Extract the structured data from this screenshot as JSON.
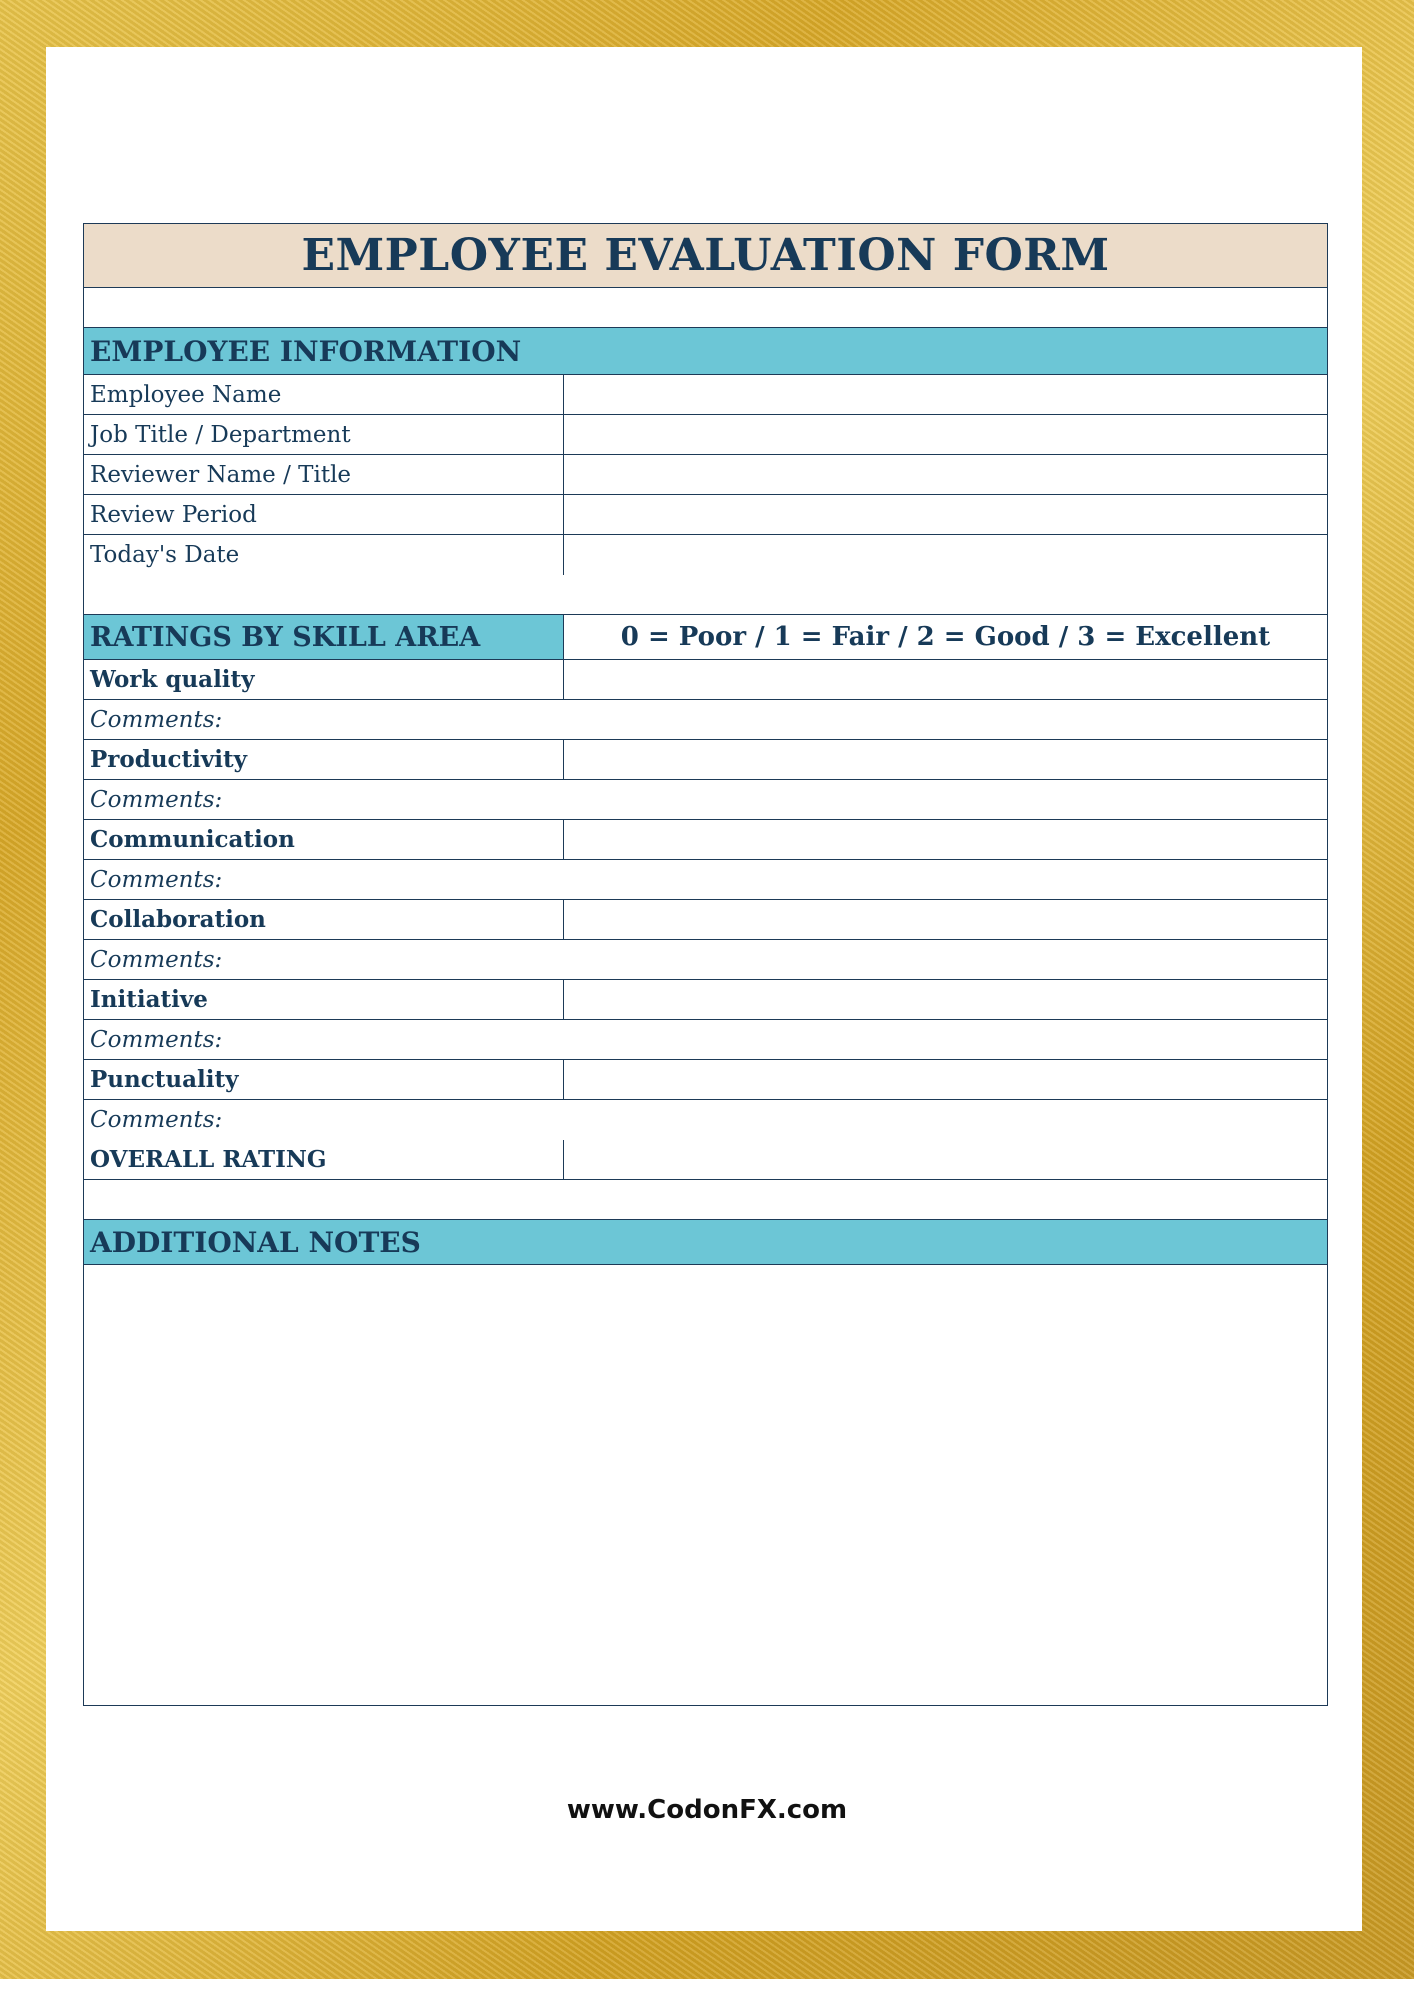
{
  "form": {
    "title": "EMPLOYEE EVALUATION FORM",
    "employee_info": {
      "header": "EMPLOYEE INFORMATION",
      "fields": [
        "Employee Name",
        "Job Title / Department",
        "Reviewer Name / Title",
        "Review Period",
        "Today's Date"
      ]
    },
    "ratings": {
      "header": "RATINGS BY SKILL AREA",
      "scale": "0 = Poor / 1 = Fair / 2 = Good / 3 = Excellent",
      "comments_label": "Comments:",
      "skills": [
        "Work quality",
        "Productivity",
        "Communication",
        "Collaboration",
        "Initiative",
        "Punctuality"
      ],
      "overall": "OVERALL RATING"
    },
    "notes": {
      "header": "ADDITIONAL NOTES"
    }
  },
  "footer": {
    "website": "www.CodonFX.com"
  },
  "colors": {
    "title_bg": "#ecdcc9",
    "section_bg": "#6cc6d6",
    "text": "#173a58",
    "border": "gold"
  }
}
